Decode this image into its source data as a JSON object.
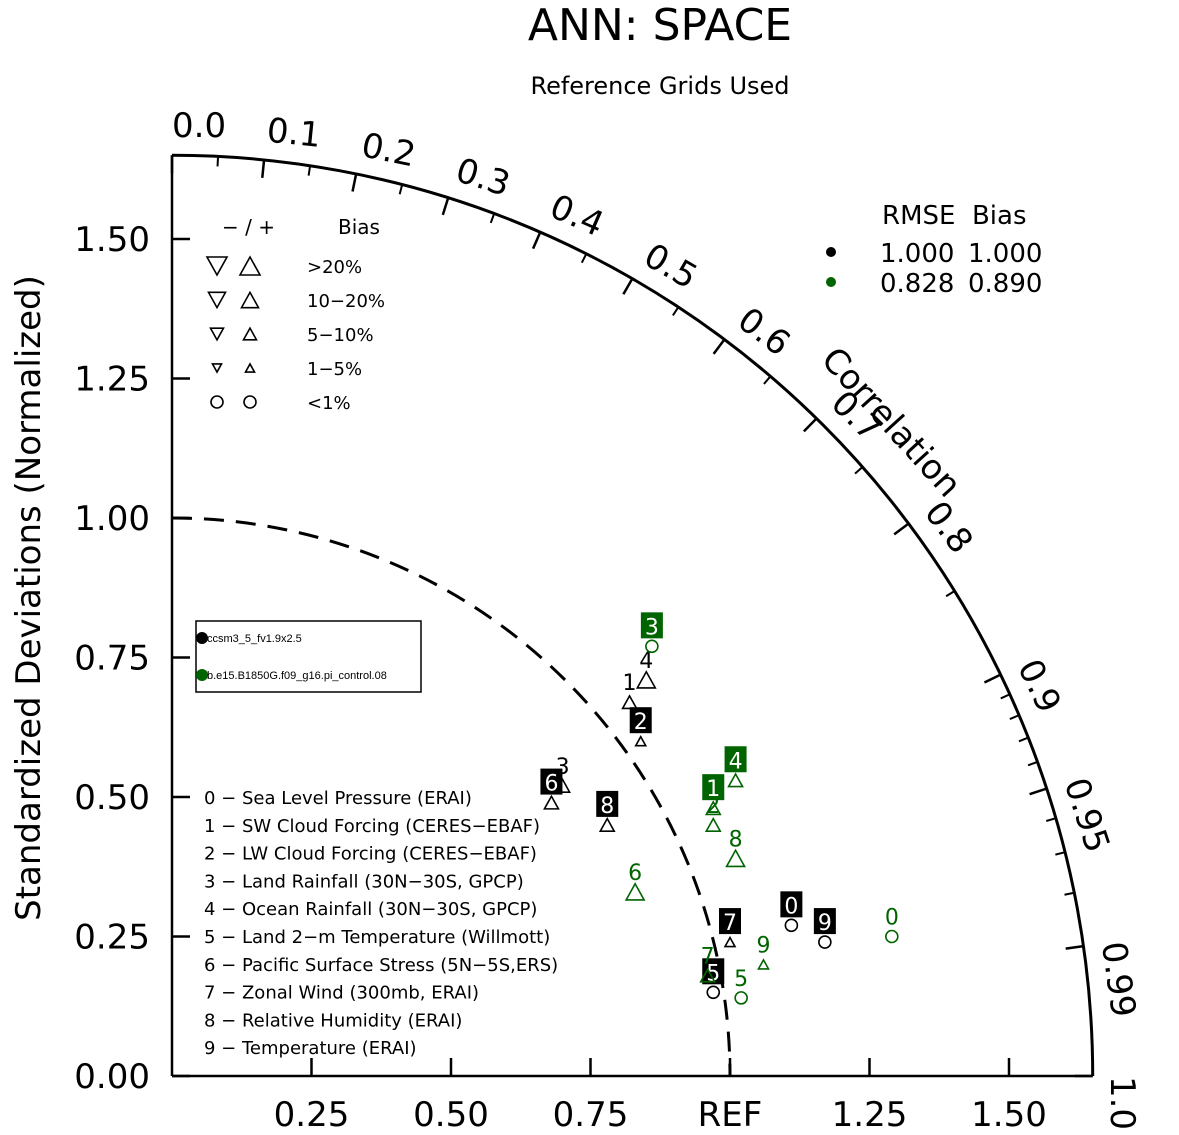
{
  "chart_data": {
    "type": "scatter",
    "subtype": "taylor-diagram",
    "title": "ANN: SPACE",
    "subtitle": "Reference Grids Used",
    "ylabel": "Standardized Deviations (Normalized)",
    "correlation_label": "Correlation",
    "std_range": [
      0,
      1.65
    ],
    "x_ticks": [
      "0.25",
      "0.50",
      "0.75",
      "REF",
      "1.25",
      "1.50"
    ],
    "y_ticks": [
      "0.00",
      "0.25",
      "0.50",
      "0.75",
      "1.00",
      "1.25",
      "1.50"
    ],
    "corr_ticks": [
      {
        "value": 0.0,
        "label": "0.0"
      },
      {
        "value": 0.1,
        "label": "0.1"
      },
      {
        "value": 0.2,
        "label": "0.2"
      },
      {
        "value": 0.3,
        "label": "0.3"
      },
      {
        "value": 0.4,
        "label": "0.4"
      },
      {
        "value": 0.5,
        "label": "0.5"
      },
      {
        "value": 0.6,
        "label": "0.6"
      },
      {
        "value": 0.7,
        "label": "0.7"
      },
      {
        "value": 0.8,
        "label": "0.8"
      },
      {
        "value": 0.9,
        "label": "0.9"
      },
      {
        "value": 0.95,
        "label": "0.95"
      },
      {
        "value": 0.99,
        "label": "0.99"
      },
      {
        "value": 1.0,
        "label": "1.0"
      }
    ],
    "bias_legend": {
      "header_sign": "− / +",
      "header_bias": "Bias",
      "rows": [
        "&gt;20%",
        "10−20%",
        "5−10%",
        "1−5%",
        "&lt;1%"
      ]
    },
    "rmse_table": {
      "header": "RMSE  Bias",
      "rows": [
        {
          "color": "#000000",
          "rmse": "1.000",
          "bias": "1.000"
        },
        {
          "color": "#006400",
          "rmse": "0.828",
          "bias": "0.890"
        }
      ]
    },
    "cases": [
      {
        "name": "ccsm3_5_fv1.9x2.5",
        "color": "#000000"
      },
      {
        "name": "b.e15.B1850G.f09_g16.pi_control.08",
        "color": "#006400"
      }
    ],
    "variables": [
      "0 − Sea Level Pressure (ERAI)",
      "1 − SW Cloud Forcing (CERES−EBAF)",
      "2 − LW Cloud Forcing (CERES−EBAF)",
      "3 − Land Rainfall (30N−30S, GPCP)",
      "4 − Ocean Rainfall (30N−30S, GPCP)",
      "5 − Land 2−m Temperature (Willmott)",
      "6 − Pacific Surface Stress (5N−5S,ERS)",
      "7 − Zonal Wind (300mb, ERAI)",
      "8 − Relative Humidity (ERAI)",
      "9 − Temperature (ERAI)"
    ],
    "series": [
      {
        "name": "ccsm3_5_fv1.9x2.5",
        "color": "#000000",
        "points": [
          {
            "id": "0",
            "x": 1.11,
            "y": 0.27,
            "marker": "circle",
            "label_style": "box"
          },
          {
            "id": "1",
            "x": 0.82,
            "y": 0.67,
            "marker": "up-small",
            "label_style": "plain"
          },
          {
            "id": "2",
            "x": 0.84,
            "y": 0.6,
            "marker": "up-tiny",
            "label_style": "box"
          },
          {
            "id": "3",
            "x": 0.7,
            "y": 0.52,
            "marker": "up-small",
            "label_style": "plain"
          },
          {
            "id": "4",
            "x": 0.85,
            "y": 0.71,
            "marker": "up-large",
            "label_style": "plain"
          },
          {
            "id": "5",
            "x": 0.97,
            "y": 0.15,
            "marker": "circle",
            "label_style": "box"
          },
          {
            "id": "6",
            "x": 0.68,
            "y": 0.49,
            "marker": "up-small",
            "label_style": "box"
          },
          {
            "id": "7",
            "x": 1.0,
            "y": 0.24,
            "marker": "up-tiny",
            "label_style": "box"
          },
          {
            "id": "8",
            "x": 0.78,
            "y": 0.45,
            "marker": "up-small",
            "label_style": "box"
          },
          {
            "id": "9",
            "x": 1.17,
            "y": 0.24,
            "marker": "circle",
            "label_style": "box"
          }
        ]
      },
      {
        "name": "b.e15.B1850G.f09_g16.pi_control.08",
        "color": "#006400",
        "points": [
          {
            "id": "0",
            "x": 1.29,
            "y": 0.25,
            "marker": "circle",
            "label_style": "plain"
          },
          {
            "id": "1",
            "x": 0.97,
            "y": 0.48,
            "marker": "up-small",
            "label_style": "box"
          },
          {
            "id": "2",
            "x": 0.97,
            "y": 0.45,
            "marker": "up-small",
            "label_style": "plain"
          },
          {
            "id": "3",
            "x": 0.86,
            "y": 0.77,
            "marker": "circle",
            "label_style": "box"
          },
          {
            "id": "4",
            "x": 1.01,
            "y": 0.53,
            "marker": "up-small",
            "label_style": "box"
          },
          {
            "id": "5",
            "x": 1.02,
            "y": 0.14,
            "marker": "circle",
            "label_style": "plain"
          },
          {
            "id": "6",
            "x": 0.83,
            "y": 0.33,
            "marker": "up-large",
            "label_style": "plain"
          },
          {
            "id": "7",
            "x": 0.96,
            "y": 0.18,
            "marker": "up-small",
            "label_style": "plain"
          },
          {
            "id": "8",
            "x": 1.01,
            "y": 0.39,
            "marker": "up-large",
            "label_style": "plain"
          },
          {
            "id": "9",
            "x": 1.06,
            "y": 0.2,
            "marker": "up-tiny",
            "label_style": "plain"
          }
        ]
      }
    ]
  }
}
